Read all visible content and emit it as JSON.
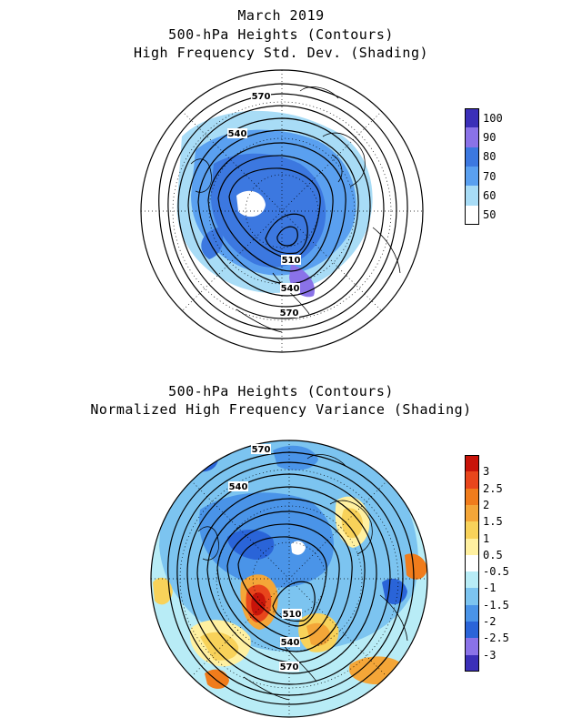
{
  "figure": {
    "month_title": "March 2019",
    "panel_top": {
      "title_line1": "500-hPa Heights (Contours)",
      "title_line2": "High Frequency Std. Dev. (Shading)",
      "contour_labels": [
        "570",
        "540",
        "510",
        "540",
        "570"
      ],
      "colorbar": {
        "labels": [
          "100",
          "90",
          "80",
          "70",
          "60",
          "50"
        ],
        "colors": [
          "#3b2fb8",
          "#8a72e8",
          "#3c78e0",
          "#5aa0f0",
          "#a8dcf6",
          "#ffffff"
        ]
      }
    },
    "panel_bottom": {
      "title_line1": "500-hPa Heights (Contours)",
      "title_line2": "Normalized High Frequency Variance (Shading)",
      "contour_labels": [
        "570",
        "540",
        "510",
        "540",
        "570"
      ],
      "colorbar": {
        "labels": [
          "3",
          "2.5",
          "2",
          "1.5",
          "1",
          "0.5",
          "-0.5",
          "-1",
          "-1.5",
          "-2",
          "-2.5",
          "-3"
        ],
        "colors": [
          "#c8140a",
          "#e8461c",
          "#f07c1c",
          "#f4a638",
          "#f8d25a",
          "#fff0a0",
          "#ffffff",
          "#b8ecf6",
          "#7cc4f0",
          "#4a94e8",
          "#2a64d8",
          "#8a72e8",
          "#3b2fb8"
        ]
      }
    }
  }
}
